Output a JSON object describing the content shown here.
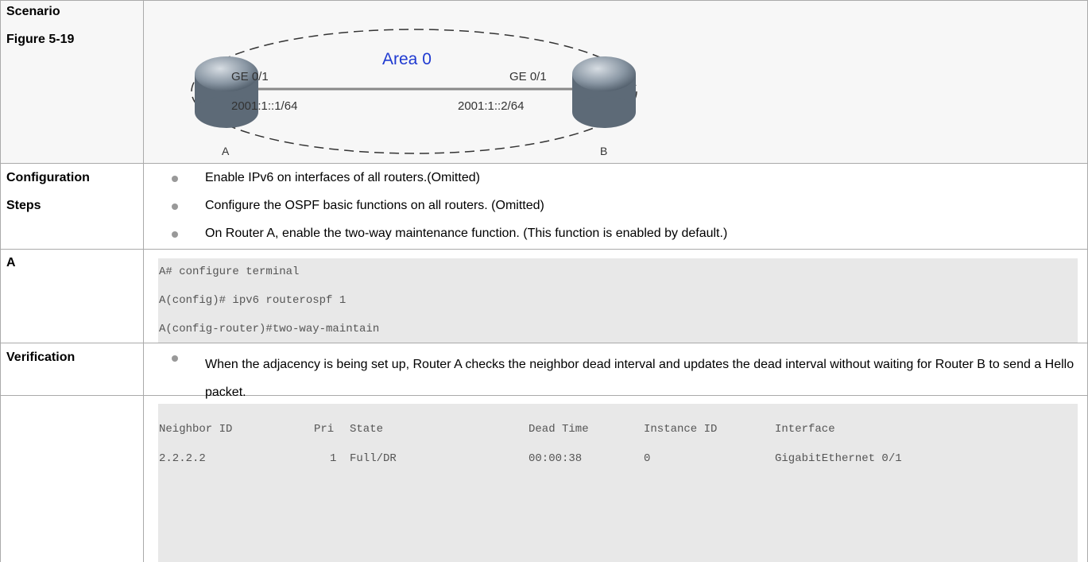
{
  "rows": [
    {
      "label": [
        "Scenario",
        "Figure 5-19"
      ],
      "figure": {
        "area": "Area 0",
        "left_port": "GE 0/1",
        "right_port": "GE 0/1",
        "left_ip": "2001:1::1/64",
        "right_ip": "2001:1::2/64",
        "left_router": "A",
        "right_router": "B"
      }
    },
    {
      "label": [
        "Configuration",
        "Steps"
      ],
      "bullets": [
        "Enable IPv6 on interfaces of all routers.(Omitted)",
        "Configure the OSPF basic functions on all routers. (Omitted)",
        "On Router A, enable the two-way maintenance function. (This function is enabled by default.)"
      ]
    },
    {
      "label": [
        "A"
      ],
      "code": [
        "A# configure terminal",
        "A(config)# ipv6 routerospf 1",
        "A(config-router)#two-way-maintain"
      ]
    },
    {
      "label": [
        "Verification"
      ],
      "bullets": [
        "When the adjacency is being set up, Router A checks the neighbor dead interval and updates the dead interval without waiting for Router B to send a Hello packet."
      ]
    },
    {
      "table": {
        "header": [
          "Neighbor ID",
          "Pri",
          "State",
          "Dead Time",
          "Instance ID",
          "Interface"
        ],
        "rows": [
          [
            "2.2.2.2",
            "1",
            "Full/DR",
            "00:00:38",
            "0",
            "GigabitEthernet 0/1"
          ]
        ]
      }
    }
  ]
}
